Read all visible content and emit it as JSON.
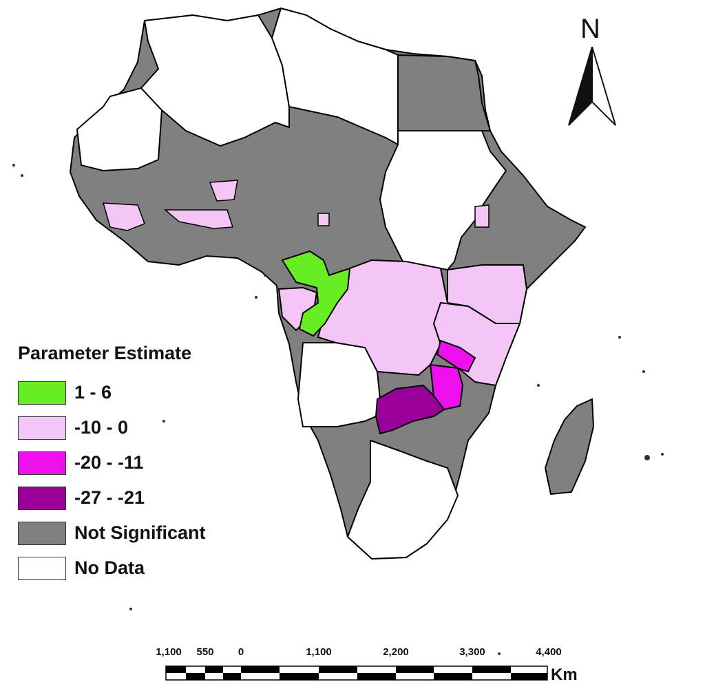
{
  "legend": {
    "title": "Parameter Estimate",
    "items": [
      {
        "label": "1 - 6",
        "color": "#66ee22"
      },
      {
        "label": "-10 - 0",
        "color": "#f3c6f5"
      },
      {
        "label": "-20 - -11",
        "color": "#ee11ee"
      },
      {
        "label": "-27 - -21",
        "color": "#990099"
      },
      {
        "label": "Not Significant",
        "color": "#808080"
      },
      {
        "label": "No Data",
        "color": "#ffffff"
      }
    ]
  },
  "north_arrow": {
    "label": "N"
  },
  "scale_bar": {
    "labels": [
      "1,100",
      "550",
      "0",
      "1,100",
      "2,200",
      "3,300",
      "4,400"
    ],
    "unit": "Km"
  },
  "colors": {
    "not_significant": "#808080",
    "no_data": "#ffffff",
    "border": "#000000"
  }
}
